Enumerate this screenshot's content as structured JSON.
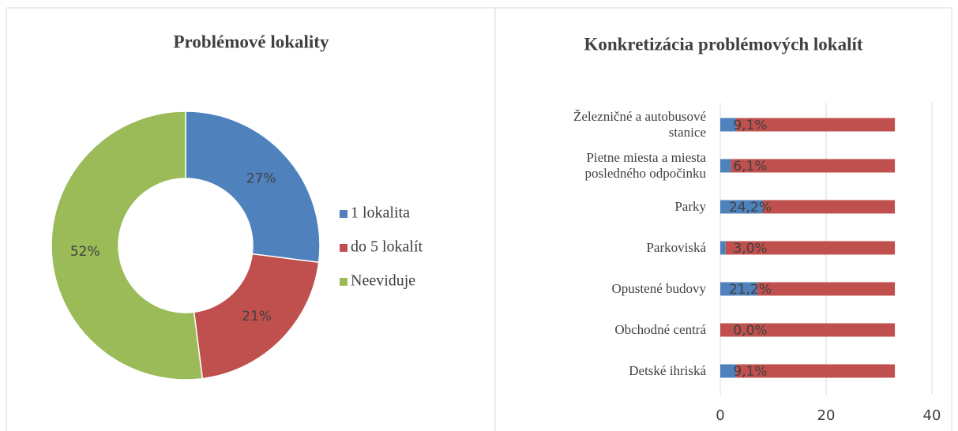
{
  "chart_data": [
    {
      "type": "donut",
      "title": "Problémové lokality",
      "categories": [
        "1 lokalita",
        "do 5 lokalít",
        "Neeviduje"
      ],
      "values": [
        27,
        21,
        52
      ],
      "value_labels": [
        "27%",
        "21%",
        "52%"
      ],
      "colors": [
        "#4f81bd",
        "#c0504d",
        "#9bbb59"
      ],
      "legend": "right"
    },
    {
      "type": "stacked-barh",
      "title": "Konkretizácia problémových lokalít",
      "categories": [
        "Železničné a autobusové stanice",
        "Pietne miesta a miesta posledného odpočinku",
        "Parky",
        "Parkoviská",
        "Opustené budovy",
        "Obchodné centrá",
        "Detské ihriská"
      ],
      "series": [
        {
          "color": "#4f81bd",
          "values": [
            3,
            2,
            8,
            1,
            7,
            0,
            3
          ],
          "data_labels": [
            "9,1%",
            "6,1%",
            "24,2%",
            "3,0%",
            "21,2%",
            "0,0%",
            "9,1%"
          ]
        },
        {
          "color": "#c0504d",
          "values": [
            30,
            31,
            25,
            32,
            26,
            33,
            30
          ]
        }
      ],
      "xlim": [
        0,
        40
      ],
      "xticks": [
        0,
        20,
        40
      ],
      "grid": true
    }
  ]
}
